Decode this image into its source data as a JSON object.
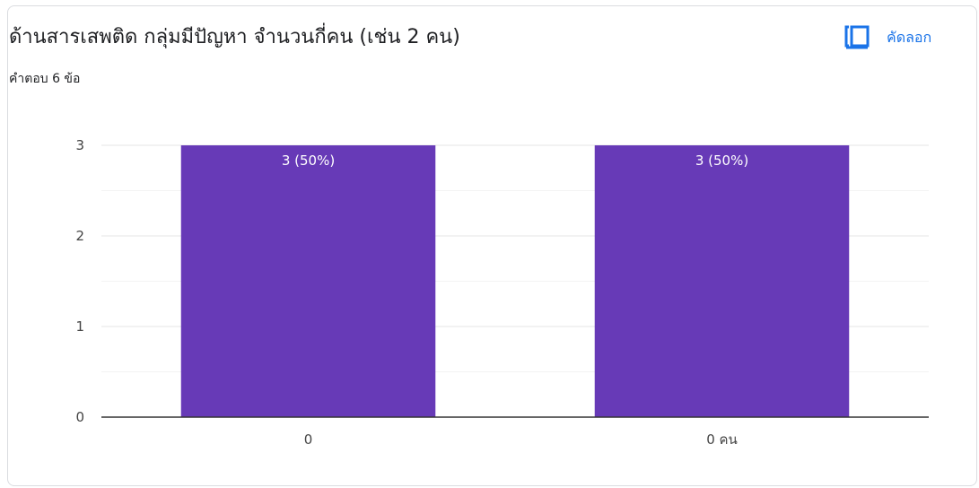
{
  "header": {
    "title": "ด้านสารเสพติด กลุ่มมีปัญหา จำนวนกี่คน (เช่น 2 คน)",
    "response_count": "คำตอบ 6 ข้อ",
    "copy_label": "คัดลอก"
  },
  "colors": {
    "bar": "#673ab7",
    "accent": "#1a73e8"
  },
  "chart_data": {
    "type": "bar",
    "categories": [
      "0",
      "0 คน"
    ],
    "values": [
      3,
      3
    ],
    "data_labels": [
      "3 (50%)",
      "3 (50%)"
    ],
    "ylim": [
      0,
      3
    ],
    "y_ticks": [
      0,
      1,
      2,
      3
    ],
    "y_tick_labels": [
      "0",
      "1",
      "2",
      "3"
    ],
    "grid": true,
    "legend": "none"
  }
}
